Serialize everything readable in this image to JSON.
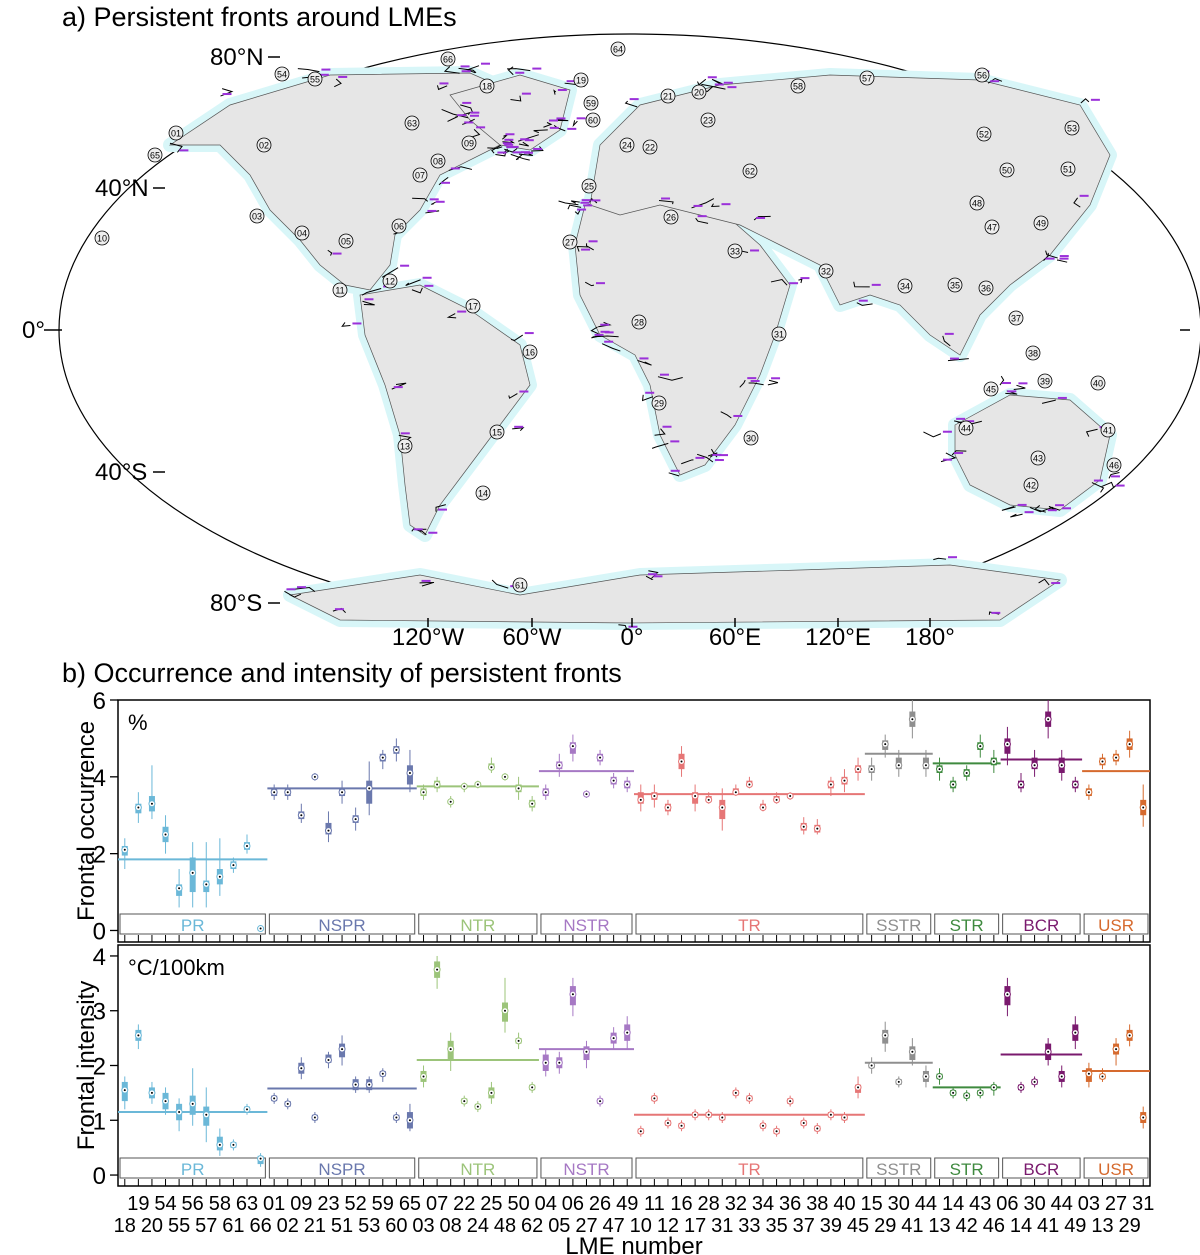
{
  "panel_a": {
    "title": "a) Persistent fronts around LMEs",
    "lat_labels": [
      "80°N",
      "40°N",
      "0°",
      "40°S",
      "80°S"
    ],
    "lon_labels": [
      "120°W",
      "60°W",
      "0°",
      "60°E",
      "120°E",
      "180°"
    ],
    "lme_markers": [
      "01",
      "02",
      "03",
      "04",
      "05",
      "06",
      "07",
      "08",
      "09",
      "10",
      "11",
      "12",
      "13",
      "14",
      "15",
      "16",
      "17",
      "18",
      "19",
      "20",
      "21",
      "22",
      "23",
      "24",
      "25",
      "26",
      "27",
      "28",
      "29",
      "30",
      "31",
      "32",
      "33",
      "34",
      "35",
      "36",
      "37",
      "38",
      "39",
      "40",
      "41",
      "42",
      "43",
      "44",
      "45",
      "46",
      "47",
      "48",
      "49",
      "50",
      "51",
      "52",
      "53",
      "54",
      "55",
      "56",
      "57",
      "58",
      "59",
      "60",
      "61",
      "62",
      "63",
      "64",
      "65",
      "66"
    ],
    "colors": {
      "land": "#e6e6e6",
      "shelf": "#d8f6f8",
      "fronts": "#000000",
      "front_labels": "#9b30d9"
    }
  },
  "chart_data": {
    "title": "b) Occurrence and intensity of persistent fronts",
    "type": "box",
    "x_categories": [
      "18",
      "19",
      "20",
      "54",
      "55",
      "56",
      "57",
      "58",
      "61",
      "63",
      "66",
      "01",
      "02",
      "09",
      "21",
      "23",
      "51",
      "52",
      "53",
      "59",
      "60",
      "65",
      "03",
      "07",
      "08",
      "22",
      "24",
      "25",
      "48",
      "50",
      "62",
      "04",
      "05",
      "06",
      "27",
      "26",
      "47",
      "49",
      "10",
      "11",
      "12",
      "16",
      "17",
      "28",
      "31",
      "32",
      "33",
      "34",
      "35",
      "36",
      "37",
      "38",
      "39",
      "40",
      "45",
      "15",
      "29",
      "30",
      "41",
      "44",
      "13",
      "14",
      "42",
      "43",
      "46",
      "06",
      "14",
      "30",
      "41",
      "44",
      "49",
      "03",
      "13",
      "27",
      "29",
      "31"
    ],
    "x_tick_row_top": [
      "19",
      "54",
      "56",
      "58",
      "63",
      "01",
      "09",
      "23",
      "52",
      "59",
      "65",
      "07",
      "22",
      "25",
      "50",
      "04",
      "06",
      "26",
      "49",
      "11",
      "16",
      "28",
      "32",
      "34",
      "36",
      "38",
      "40",
      "15",
      "30",
      "44",
      "14",
      "43",
      "06",
      "30",
      "44",
      "03",
      "27",
      "31"
    ],
    "x_tick_row_bottom": [
      "18",
      "20",
      "55",
      "57",
      "61",
      "66",
      "02",
      "21",
      "51",
      "53",
      "60",
      "03",
      "08",
      "24",
      "48",
      "62",
      "05",
      "27",
      "47",
      "10",
      "12",
      "17",
      "31",
      "33",
      "35",
      "37",
      "39",
      "45",
      "29",
      "41",
      "13",
      "42",
      "46",
      "14",
      "41",
      "49",
      "13",
      "29"
    ],
    "xlabel": "LME number",
    "groups": [
      {
        "name": "PR",
        "color": "#6bb8d8",
        "start": 0,
        "end": 11
      },
      {
        "name": "NSPR",
        "color": "#6a78ad",
        "start": 11,
        "end": 22
      },
      {
        "name": "NTR",
        "color": "#9cc47a",
        "start": 22,
        "end": 31
      },
      {
        "name": "NSTR",
        "color": "#a678c4",
        "start": 31,
        "end": 38
      },
      {
        "name": "TR",
        "color": "#e67676",
        "start": 38,
        "end": 55
      },
      {
        "name": "SSTR",
        "color": "#8f8f8f",
        "start": 55,
        "end": 60
      },
      {
        "name": "STR",
        "color": "#3f8a3f",
        "start": 60,
        "end": 65
      },
      {
        "name": "BCR",
        "color": "#7a1a6e",
        "start": 65,
        "end": 71
      },
      {
        "name": "USR",
        "color": "#d66a2e",
        "start": 71,
        "end": 76
      }
    ],
    "occurrence": {
      "ylabel": "Frontal occurrence",
      "unit": "%",
      "ylim": [
        -0.3,
        6
      ],
      "yticks": [
        0,
        2,
        4,
        6
      ],
      "group_means": [
        1.85,
        3.7,
        3.75,
        4.15,
        3.55,
        4.6,
        4.35,
        4.45,
        4.15
      ],
      "medians": [
        2.1,
        3.2,
        3.3,
        2.5,
        1.1,
        1.5,
        1.2,
        1.4,
        1.7,
        2.2,
        0.05,
        3.6,
        3.6,
        3.0,
        4.0,
        2.6,
        3.6,
        2.9,
        3.7,
        4.5,
        4.7,
        4.1,
        3.6,
        3.8,
        3.35,
        3.75,
        3.8,
        4.25,
        4.0,
        3.7,
        3.3,
        3.6,
        4.3,
        4.8,
        3.55,
        4.5,
        3.9,
        3.8,
        3.4,
        3.5,
        3.2,
        4.4,
        3.5,
        3.4,
        3.2,
        3.6,
        3.8,
        3.2,
        3.4,
        3.5,
        2.7,
        2.65,
        3.8,
        3.9,
        4.2,
        4.2,
        4.85,
        4.3,
        5.5,
        4.3,
        4.2,
        3.8,
        4.1,
        4.8,
        4.4,
        4.85,
        3.8,
        4.3,
        5.5,
        4.3,
        3.8,
        3.6,
        4.4,
        4.5,
        4.85,
        3.2
      ],
      "q1": [
        1.95,
        3.05,
        3.1,
        2.3,
        0.9,
        1.0,
        1.0,
        1.2,
        1.6,
        2.1,
        0.0,
        3.5,
        3.5,
        2.9,
        3.95,
        2.5,
        3.5,
        2.8,
        3.3,
        4.4,
        4.6,
        3.8,
        3.5,
        3.7,
        3.3,
        3.7,
        3.75,
        4.2,
        3.95,
        3.6,
        3.2,
        3.5,
        4.2,
        4.6,
        3.5,
        4.4,
        3.8,
        3.7,
        3.3,
        3.4,
        3.1,
        4.2,
        3.3,
        3.35,
        2.9,
        3.55,
        3.75,
        3.15,
        3.35,
        3.45,
        2.6,
        2.55,
        3.7,
        3.8,
        4.1,
        4.1,
        4.7,
        4.2,
        5.3,
        4.2,
        4.1,
        3.7,
        4.0,
        4.7,
        4.3,
        4.6,
        3.7,
        4.2,
        5.3,
        4.1,
        3.7,
        3.5,
        4.3,
        4.4,
        4.7,
        3.0
      ],
      "q3": [
        2.2,
        3.3,
        3.5,
        2.7,
        1.2,
        1.9,
        1.3,
        1.6,
        1.8,
        2.3,
        0.05,
        3.7,
        3.7,
        3.1,
        4.05,
        2.8,
        3.7,
        3.0,
        3.9,
        4.6,
        4.8,
        4.3,
        3.7,
        3.9,
        3.4,
        3.8,
        3.85,
        4.35,
        4.05,
        3.8,
        3.4,
        3.7,
        4.4,
        4.9,
        3.6,
        4.6,
        4.0,
        3.9,
        3.6,
        3.6,
        3.3,
        4.6,
        3.6,
        3.5,
        3.4,
        3.7,
        3.9,
        3.3,
        3.5,
        3.55,
        2.8,
        2.75,
        3.9,
        4.0,
        4.3,
        4.3,
        4.95,
        4.5,
        5.7,
        4.5,
        4.3,
        3.9,
        4.2,
        4.9,
        4.5,
        5.0,
        3.9,
        4.5,
        5.7,
        4.5,
        3.9,
        3.7,
        4.5,
        4.6,
        5.0,
        3.4
      ],
      "lo": [
        1.6,
        2.8,
        2.9,
        2.0,
        0.6,
        0.6,
        0.6,
        0.9,
        1.5,
        2.0,
        0.0,
        3.4,
        3.4,
        2.8,
        3.9,
        2.3,
        3.3,
        2.6,
        3.0,
        4.2,
        4.4,
        3.6,
        3.4,
        3.6,
        3.2,
        3.6,
        3.7,
        4.1,
        3.9,
        3.4,
        3.1,
        3.4,
        4.0,
        4.4,
        3.45,
        4.3,
        3.7,
        3.6,
        3.1,
        3.2,
        3.0,
        4.0,
        3.1,
        3.3,
        2.6,
        3.5,
        3.7,
        3.1,
        3.3,
        3.4,
        2.5,
        2.5,
        3.5,
        3.6,
        3.9,
        3.9,
        4.5,
        4.0,
        5.0,
        4.0,
        3.9,
        3.6,
        3.9,
        4.5,
        4.1,
        4.3,
        3.6,
        4.0,
        5.0,
        3.9,
        3.6,
        3.4,
        4.2,
        4.3,
        4.5,
        2.7
      ],
      "hi": [
        2.4,
        3.6,
        4.3,
        3.0,
        1.6,
        2.3,
        2.3,
        2.4,
        1.9,
        2.5,
        0.1,
        3.8,
        3.8,
        3.3,
        4.1,
        3.1,
        3.9,
        3.2,
        4.4,
        4.7,
        5.0,
        4.7,
        3.8,
        4.0,
        3.5,
        3.85,
        3.9,
        4.5,
        4.1,
        4.0,
        3.5,
        3.8,
        4.6,
        5.1,
        3.65,
        4.7,
        4.1,
        4.0,
        3.8,
        3.8,
        3.4,
        4.8,
        3.8,
        3.6,
        3.7,
        3.8,
        4.0,
        3.4,
        3.6,
        3.6,
        2.95,
        2.9,
        4.0,
        4.2,
        4.5,
        4.5,
        5.1,
        4.7,
        6.0,
        4.7,
        4.5,
        4.0,
        4.3,
        5.1,
        4.7,
        5.3,
        4.1,
        4.7,
        6.0,
        4.7,
        4.0,
        3.8,
        4.6,
        4.7,
        5.2,
        3.8
      ]
    },
    "intensity": {
      "ylabel": "Frontal intensity",
      "unit": "°C/100km",
      "ylim": [
        -0.2,
        4.2
      ],
      "yticks": [
        0,
        1,
        2,
        3,
        4
      ],
      "group_means": [
        1.15,
        1.58,
        2.1,
        2.3,
        1.1,
        2.05,
        1.6,
        2.2,
        1.9
      ],
      "medians": [
        1.55,
        2.55,
        1.5,
        1.35,
        1.15,
        1.3,
        1.1,
        0.55,
        0.55,
        1.2,
        0.3,
        1.4,
        1.3,
        1.95,
        1.05,
        2.1,
        2.3,
        1.65,
        1.65,
        1.85,
        1.05,
        1.0,
        1.8,
        3.75,
        2.3,
        1.35,
        1.25,
        1.5,
        3.0,
        2.45,
        1.6,
        2.05,
        2.05,
        3.3,
        2.25,
        1.35,
        2.5,
        2.6,
        0.8,
        1.4,
        0.95,
        0.9,
        1.1,
        1.1,
        1.05,
        1.5,
        1.4,
        0.9,
        0.8,
        1.35,
        0.95,
        0.85,
        1.1,
        1.05,
        1.6,
        2.0,
        2.55,
        1.7,
        2.25,
        1.8,
        1.8,
        1.5,
        1.45,
        1.5,
        1.6,
        3.3,
        1.6,
        1.7,
        2.25,
        1.8,
        2.6,
        1.85,
        1.8,
        2.3,
        2.55,
        1.05
      ],
      "q1": [
        1.35,
        2.45,
        1.4,
        1.2,
        1.0,
        1.1,
        0.9,
        0.45,
        0.5,
        1.15,
        0.2,
        1.35,
        1.25,
        1.85,
        1.0,
        2.05,
        2.15,
        1.55,
        1.55,
        1.8,
        1.0,
        0.85,
        1.7,
        3.6,
        2.1,
        1.3,
        1.2,
        1.4,
        2.8,
        2.4,
        1.55,
        1.9,
        1.95,
        3.1,
        2.1,
        1.3,
        2.4,
        2.45,
        0.75,
        1.35,
        0.9,
        0.85,
        1.05,
        1.05,
        1.0,
        1.45,
        1.35,
        0.85,
        0.75,
        1.3,
        0.9,
        0.8,
        1.05,
        1.0,
        1.5,
        1.95,
        2.4,
        1.65,
        2.1,
        1.7,
        1.75,
        1.45,
        1.4,
        1.45,
        1.55,
        3.1,
        1.55,
        1.65,
        2.1,
        1.7,
        2.45,
        1.7,
        1.75,
        2.2,
        2.45,
        0.95
      ],
      "q3": [
        1.7,
        2.65,
        1.6,
        1.5,
        1.3,
        1.45,
        1.25,
        0.7,
        0.6,
        1.25,
        0.35,
        1.45,
        1.35,
        2.05,
        1.1,
        2.2,
        2.4,
        1.75,
        1.75,
        1.9,
        1.1,
        1.15,
        1.9,
        3.9,
        2.45,
        1.4,
        1.3,
        1.6,
        3.15,
        2.5,
        1.65,
        2.2,
        2.15,
        3.45,
        2.35,
        1.4,
        2.6,
        2.75,
        0.85,
        1.45,
        1.0,
        0.95,
        1.15,
        1.15,
        1.1,
        1.55,
        1.45,
        0.95,
        0.85,
        1.4,
        1.0,
        0.9,
        1.15,
        1.1,
        1.65,
        2.05,
        2.65,
        1.75,
        2.35,
        1.9,
        1.85,
        1.55,
        1.5,
        1.55,
        1.65,
        3.45,
        1.65,
        1.75,
        2.4,
        1.9,
        2.75,
        1.95,
        1.85,
        2.4,
        2.65,
        1.15
      ],
      "lo": [
        1.2,
        2.3,
        1.3,
        1.1,
        0.8,
        0.9,
        0.6,
        0.35,
        0.45,
        1.1,
        0.15,
        1.3,
        1.2,
        1.75,
        0.95,
        1.95,
        2.0,
        1.5,
        1.5,
        1.7,
        0.95,
        0.8,
        1.6,
        3.4,
        1.9,
        1.25,
        1.15,
        1.3,
        2.6,
        2.3,
        1.5,
        1.8,
        1.85,
        2.9,
        1.95,
        1.25,
        2.3,
        2.3,
        0.7,
        1.3,
        0.85,
        0.8,
        1.0,
        1.0,
        0.95,
        1.4,
        1.3,
        0.8,
        0.7,
        1.25,
        0.85,
        0.75,
        1.0,
        0.95,
        1.4,
        1.85,
        2.25,
        1.6,
        2.0,
        1.6,
        1.65,
        1.4,
        1.35,
        1.4,
        1.45,
        2.9,
        1.5,
        1.6,
        2.0,
        1.6,
        2.3,
        1.6,
        1.7,
        2.0,
        2.35,
        0.85
      ],
      "hi": [
        1.8,
        2.75,
        1.7,
        1.6,
        1.4,
        1.95,
        1.6,
        0.85,
        0.65,
        1.3,
        0.4,
        1.5,
        1.4,
        2.15,
        1.15,
        2.25,
        2.55,
        1.8,
        1.8,
        1.95,
        1.15,
        1.3,
        2.0,
        4.0,
        2.6,
        1.45,
        1.35,
        1.7,
        3.6,
        2.6,
        1.7,
        2.3,
        2.25,
        3.6,
        2.45,
        1.45,
        2.7,
        2.9,
        0.9,
        1.5,
        1.05,
        1.0,
        1.2,
        1.2,
        1.15,
        1.6,
        1.5,
        1.0,
        0.9,
        1.45,
        1.05,
        0.95,
        1.2,
        1.15,
        1.8,
        2.15,
        2.8,
        1.8,
        2.5,
        2.0,
        1.95,
        1.6,
        1.55,
        1.6,
        1.7,
        3.6,
        1.7,
        1.8,
        2.5,
        2.0,
        2.9,
        2.05,
        1.95,
        2.5,
        2.75,
        1.25
      ]
    }
  }
}
